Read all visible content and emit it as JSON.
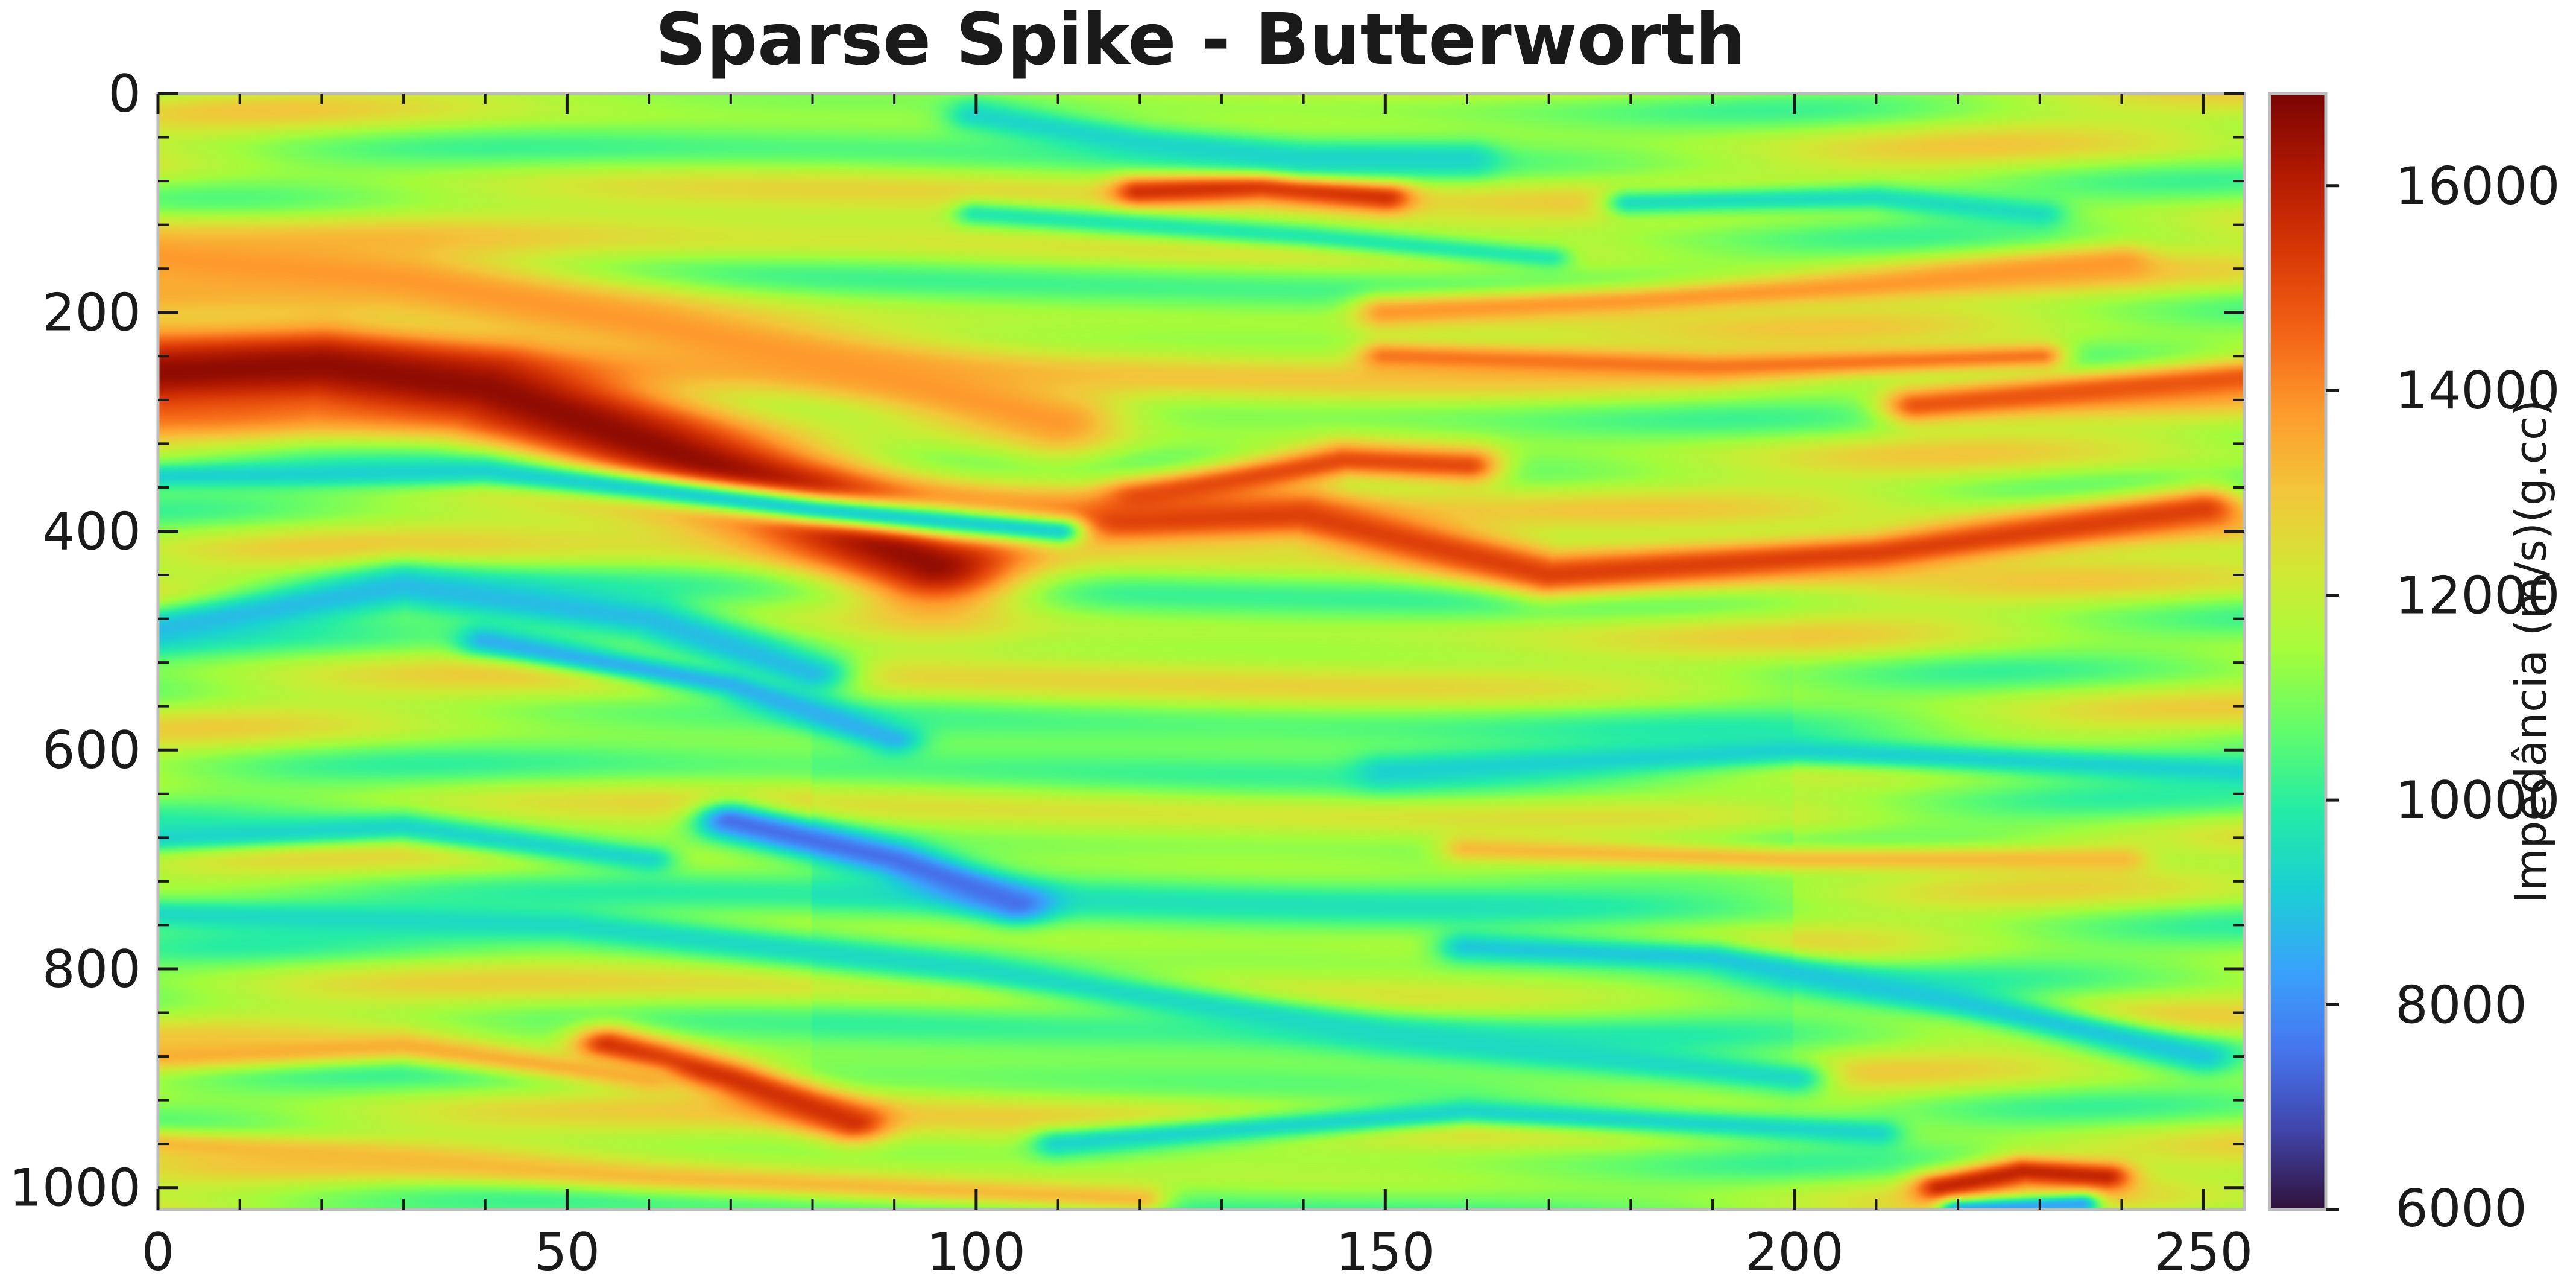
{
  "chart_data": {
    "type": "heatmap",
    "title": "Sparse Spike - Butterworth",
    "xlabel": "",
    "ylabel": "",
    "xlim": [
      0,
      255
    ],
    "ylim": [
      1020,
      0
    ],
    "x_ticks": [
      0,
      50,
      100,
      150,
      200,
      250
    ],
    "y_ticks": [
      0,
      200,
      400,
      600,
      800,
      1000
    ],
    "colorbar": {
      "label": "Impedância (m/s)(g.cc)",
      "range": [
        6000,
        16900
      ],
      "ticks": [
        6000,
        8000,
        10000,
        12000,
        14000,
        16000
      ],
      "colormap": [
        "#30123b",
        "#4145ab",
        "#4675ed",
        "#39a2fc",
        "#1bcfd4",
        "#24eca6",
        "#61fc6c",
        "#a4fc3b",
        "#d1e834",
        "#f3c63a",
        "#fe9b2d",
        "#f36315",
        "#d93806",
        "#b11901",
        "#7a0403"
      ]
    },
    "background_value": 11600,
    "features": [
      {
        "type": "band",
        "path": [
          [
            0,
            255
          ],
          [
            20,
            248
          ],
          [
            40,
            268
          ],
          [
            60,
            320
          ],
          [
            78,
            370
          ],
          [
            95,
            430
          ]
        ],
        "value": 16600,
        "width": 45
      },
      {
        "type": "band",
        "path": [
          [
            0,
            150
          ],
          [
            30,
            170
          ],
          [
            60,
            210
          ],
          [
            90,
            260
          ],
          [
            110,
            300
          ]
        ],
        "value": 13800,
        "width": 35
      },
      {
        "type": "band",
        "path": [
          [
            100,
            395
          ],
          [
            140,
            385
          ],
          [
            170,
            440
          ],
          [
            210,
            420
          ],
          [
            250,
            380
          ]
        ],
        "value": 15200,
        "width": 22
      },
      {
        "type": "band",
        "path": [
          [
            120,
            370
          ],
          [
            145,
            335
          ],
          [
            160,
            340
          ]
        ],
        "value": 15000,
        "width": 18
      },
      {
        "type": "band",
        "path": [
          [
            120,
            90
          ],
          [
            135,
            85
          ],
          [
            150,
            95
          ]
        ],
        "value": 15500,
        "width": 14
      },
      {
        "type": "band",
        "path": [
          [
            215,
            285
          ],
          [
            255,
            260
          ]
        ],
        "value": 14800,
        "width": 18
      },
      {
        "type": "band",
        "path": [
          [
            0,
            350
          ],
          [
            40,
            345
          ],
          [
            80,
            380
          ],
          [
            110,
            400
          ]
        ],
        "value": 9200,
        "width": 14
      },
      {
        "type": "band",
        "path": [
          [
            0,
            490
          ],
          [
            30,
            450
          ],
          [
            60,
            480
          ],
          [
            80,
            530
          ]
        ],
        "value": 8800,
        "width": 22
      },
      {
        "type": "band",
        "path": [
          [
            40,
            500
          ],
          [
            70,
            540
          ],
          [
            90,
            590
          ]
        ],
        "value": 8600,
        "width": 14
      },
      {
        "type": "band",
        "path": [
          [
            70,
            665
          ],
          [
            90,
            700
          ],
          [
            105,
            740
          ]
        ],
        "value": 7500,
        "width": 18
      },
      {
        "type": "band",
        "path": [
          [
            0,
            680
          ],
          [
            30,
            670
          ],
          [
            60,
            700
          ]
        ],
        "value": 9300,
        "width": 14
      },
      {
        "type": "band",
        "path": [
          [
            0,
            750
          ],
          [
            50,
            760
          ],
          [
            100,
            800
          ],
          [
            150,
            860
          ],
          [
            200,
            900
          ]
        ],
        "value": 9400,
        "width": 18
      },
      {
        "type": "band",
        "path": [
          [
            55,
            870
          ],
          [
            70,
            900
          ],
          [
            85,
            940
          ]
        ],
        "value": 15500,
        "width": 18
      },
      {
        "type": "band",
        "path": [
          [
            0,
            880
          ],
          [
            30,
            870
          ],
          [
            60,
            900
          ]
        ],
        "value": 13400,
        "width": 14
      },
      {
        "type": "band",
        "path": [
          [
            150,
            620
          ],
          [
            200,
            600
          ],
          [
            255,
            620
          ]
        ],
        "value": 9200,
        "width": 16
      },
      {
        "type": "band",
        "path": [
          [
            160,
            690
          ],
          [
            200,
            700
          ],
          [
            240,
            700
          ]
        ],
        "value": 13200,
        "width": 14
      },
      {
        "type": "band",
        "path": [
          [
            160,
            780
          ],
          [
            190,
            790
          ],
          [
            220,
            830
          ],
          [
            250,
            880
          ]
        ],
        "value": 9000,
        "width": 16
      },
      {
        "type": "band",
        "path": [
          [
            150,
            200
          ],
          [
            180,
            190
          ],
          [
            210,
            175
          ],
          [
            240,
            155
          ]
        ],
        "value": 13800,
        "width": 16
      },
      {
        "type": "band",
        "path": [
          [
            150,
            240
          ],
          [
            190,
            250
          ],
          [
            230,
            240
          ]
        ],
        "value": 14300,
        "width": 14
      },
      {
        "type": "band",
        "path": [
          [
            180,
            100
          ],
          [
            210,
            95
          ],
          [
            230,
            110
          ]
        ],
        "value": 9500,
        "width": 14
      },
      {
        "type": "band",
        "path": [
          [
            100,
            20
          ],
          [
            120,
            45
          ],
          [
            140,
            60
          ],
          [
            160,
            60
          ]
        ],
        "value": 9300,
        "width": 16
      },
      {
        "type": "band",
        "path": [
          [
            100,
            110
          ],
          [
            140,
            130
          ],
          [
            170,
            150
          ]
        ],
        "value": 9800,
        "width": 12
      },
      {
        "type": "band",
        "path": [
          [
            218,
            1000
          ],
          [
            228,
            985
          ],
          [
            238,
            990
          ]
        ],
        "value": 15800,
        "width": 14
      },
      {
        "type": "band",
        "path": [
          [
            220,
            1020
          ],
          [
            235,
            1015
          ]
        ],
        "value": 8400,
        "width": 10
      },
      {
        "type": "band",
        "path": [
          [
            0,
            960
          ],
          [
            60,
            990
          ],
          [
            120,
            1010
          ]
        ],
        "value": 13200,
        "width": 14
      },
      {
        "type": "band",
        "path": [
          [
            110,
            960
          ],
          [
            160,
            930
          ],
          [
            210,
            950
          ]
        ],
        "value": 9300,
        "width": 14
      }
    ]
  }
}
